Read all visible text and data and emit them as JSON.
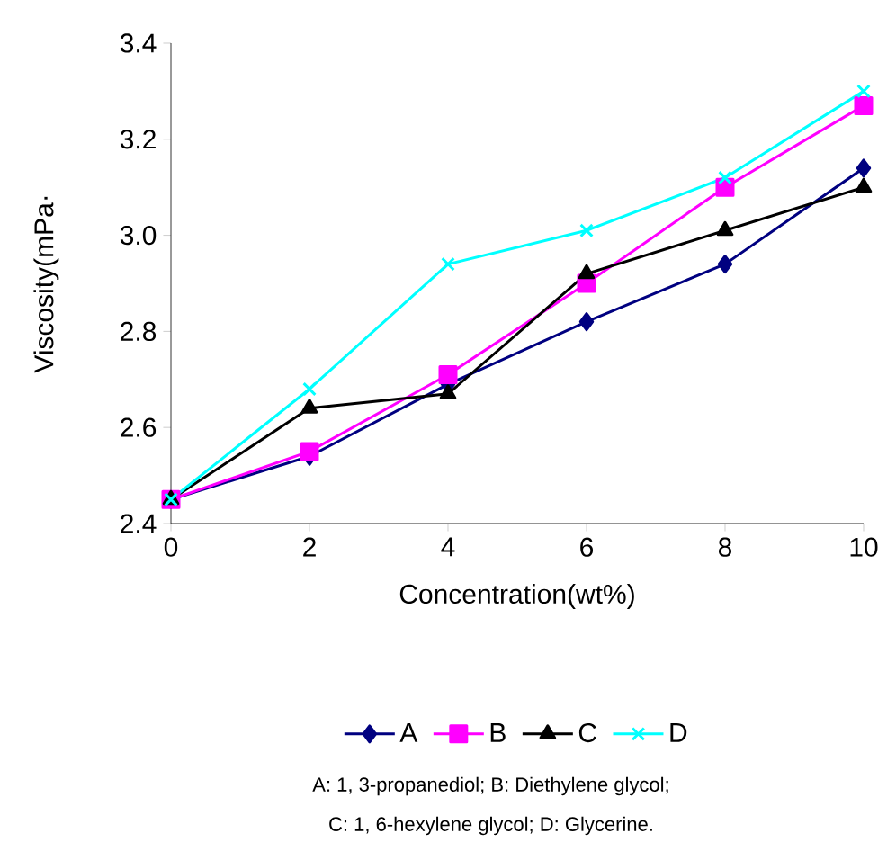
{
  "chart_data": {
    "type": "line",
    "xlabel": "Concentration(wt%)",
    "ylabel": "Viscosity(mPa·",
    "x": [
      0,
      2,
      4,
      6,
      8,
      10
    ],
    "series": [
      {
        "name": "A",
        "color": "#000080",
        "marker": "diamond",
        "values": [
          2.45,
          2.54,
          2.69,
          2.82,
          2.94,
          3.14
        ]
      },
      {
        "name": "B",
        "color": "#ff00ff",
        "marker": "square",
        "values": [
          2.45,
          2.55,
          2.71,
          2.9,
          3.1,
          3.27
        ]
      },
      {
        "name": "C",
        "color": "#000000",
        "marker": "triangle",
        "values": [
          2.45,
          2.64,
          2.67,
          2.92,
          3.01,
          3.1
        ]
      },
      {
        "name": "D",
        "color": "#00ffff",
        "marker": "cross",
        "values": [
          2.45,
          2.68,
          2.94,
          3.01,
          3.12,
          3.3
        ]
      }
    ],
    "xlim": [
      0,
      10
    ],
    "xticks": [
      0,
      2,
      4,
      6,
      8,
      10
    ],
    "ylim": [
      2.4,
      3.4
    ],
    "yticks": [
      2.4,
      2.6,
      2.8,
      {
        "value": 3,
        "label": "3.0"
      },
      3.2,
      3.4
    ],
    "grid": false,
    "legend": "bottom",
    "annotations": [
      "A: 1, 3-propanediol; B: Diethylene glycol;",
      "C: 1, 6-hexylene glycol; D: Glycerine."
    ]
  }
}
